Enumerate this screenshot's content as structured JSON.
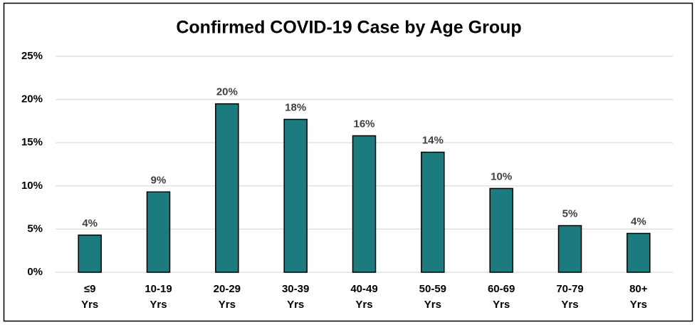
{
  "chart_data": {
    "type": "bar",
    "title": "Confirmed COVID-19 Case by Age Group",
    "categories": [
      "≤9 Yrs",
      "10-19 Yrs",
      "20-29 Yrs",
      "30-39 Yrs",
      "40-49 Yrs",
      "50-59 Yrs",
      "60-69 Yrs",
      "70-79 Yrs",
      "80+ Yrs"
    ],
    "values": [
      4.3,
      9.3,
      19.5,
      17.7,
      15.8,
      13.9,
      9.7,
      5.4,
      4.5
    ],
    "value_labels": [
      "4%",
      "9%",
      "20%",
      "18%",
      "16%",
      "14%",
      "10%",
      "5%",
      "4%"
    ],
    "color": "#1b7b7e",
    "ylim": [
      0,
      25
    ],
    "yticks": [
      {
        "value": 0,
        "label": "0%"
      },
      {
        "value": 5,
        "label": "5%"
      },
      {
        "value": 10,
        "label": "10%"
      },
      {
        "value": 15,
        "label": "15%"
      },
      {
        "value": 20,
        "label": "20%"
      },
      {
        "value": 25,
        "label": "25%"
      }
    ],
    "grid": true
  }
}
